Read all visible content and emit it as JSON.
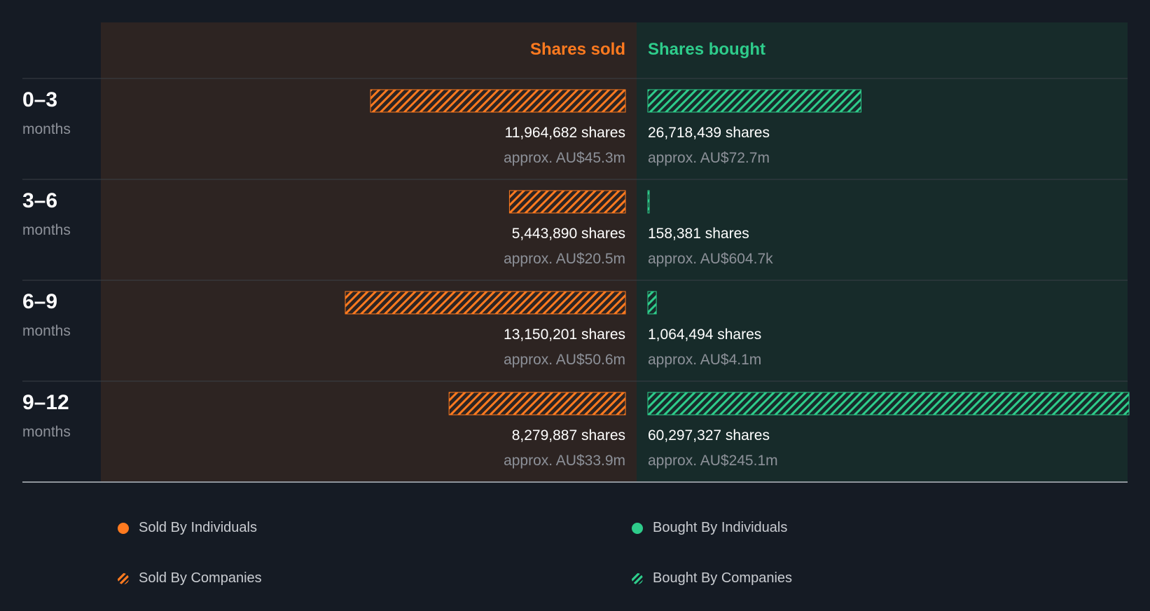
{
  "colors": {
    "background": "#151b24",
    "sold": "#ff7a1f",
    "bought": "#2ecc8b",
    "sold_panel": "#2d2422",
    "bought_panel": "#172b2a",
    "label_muted": "#8d9199",
    "value_text": "#ffffff"
  },
  "chart_data": {
    "type": "bar",
    "headers": {
      "sold": "Shares sold",
      "bought": "Shares bought"
    },
    "categories": [
      {
        "range": "0–3",
        "unit": "months"
      },
      {
        "range": "3–6",
        "unit": "months"
      },
      {
        "range": "6–9",
        "unit": "months"
      },
      {
        "range": "9–12",
        "unit": "months"
      }
    ],
    "series": [
      {
        "name": "Shares sold",
        "values": [
          11964682,
          5443890,
          13150201,
          8279887
        ],
        "labels": [
          "11,964,682 shares",
          "5,443,890 shares",
          "13,150,201 shares",
          "8,279,887 shares"
        ],
        "approx": [
          "approx. AU$45.3m",
          "approx. AU$20.5m",
          "approx. AU$50.6m",
          "approx. AU$33.9m"
        ]
      },
      {
        "name": "Shares bought",
        "values": [
          26718439,
          158381,
          1064494,
          60297327
        ],
        "labels": [
          "26,718,439 shares",
          "158,381 shares",
          "1,064,494 shares",
          "60,297,327 shares"
        ],
        "approx": [
          "approx. AU$72.7m",
          "approx. AU$604.7k",
          "approx. AU$4.1m",
          "approx. AU$245.1m"
        ]
      }
    ],
    "legend": [
      {
        "label": "Sold By Individuals",
        "style": "solid",
        "color": "#ff7a1f"
      },
      {
        "label": "Bought By Individuals",
        "style": "solid",
        "color": "#2ecc8b"
      },
      {
        "label": "Sold By Companies",
        "style": "hatched",
        "color": "#ff7a1f"
      },
      {
        "label": "Bought By Companies",
        "style": "hatched",
        "color": "#2ecc8b"
      }
    ],
    "legend_position": "bottom"
  }
}
